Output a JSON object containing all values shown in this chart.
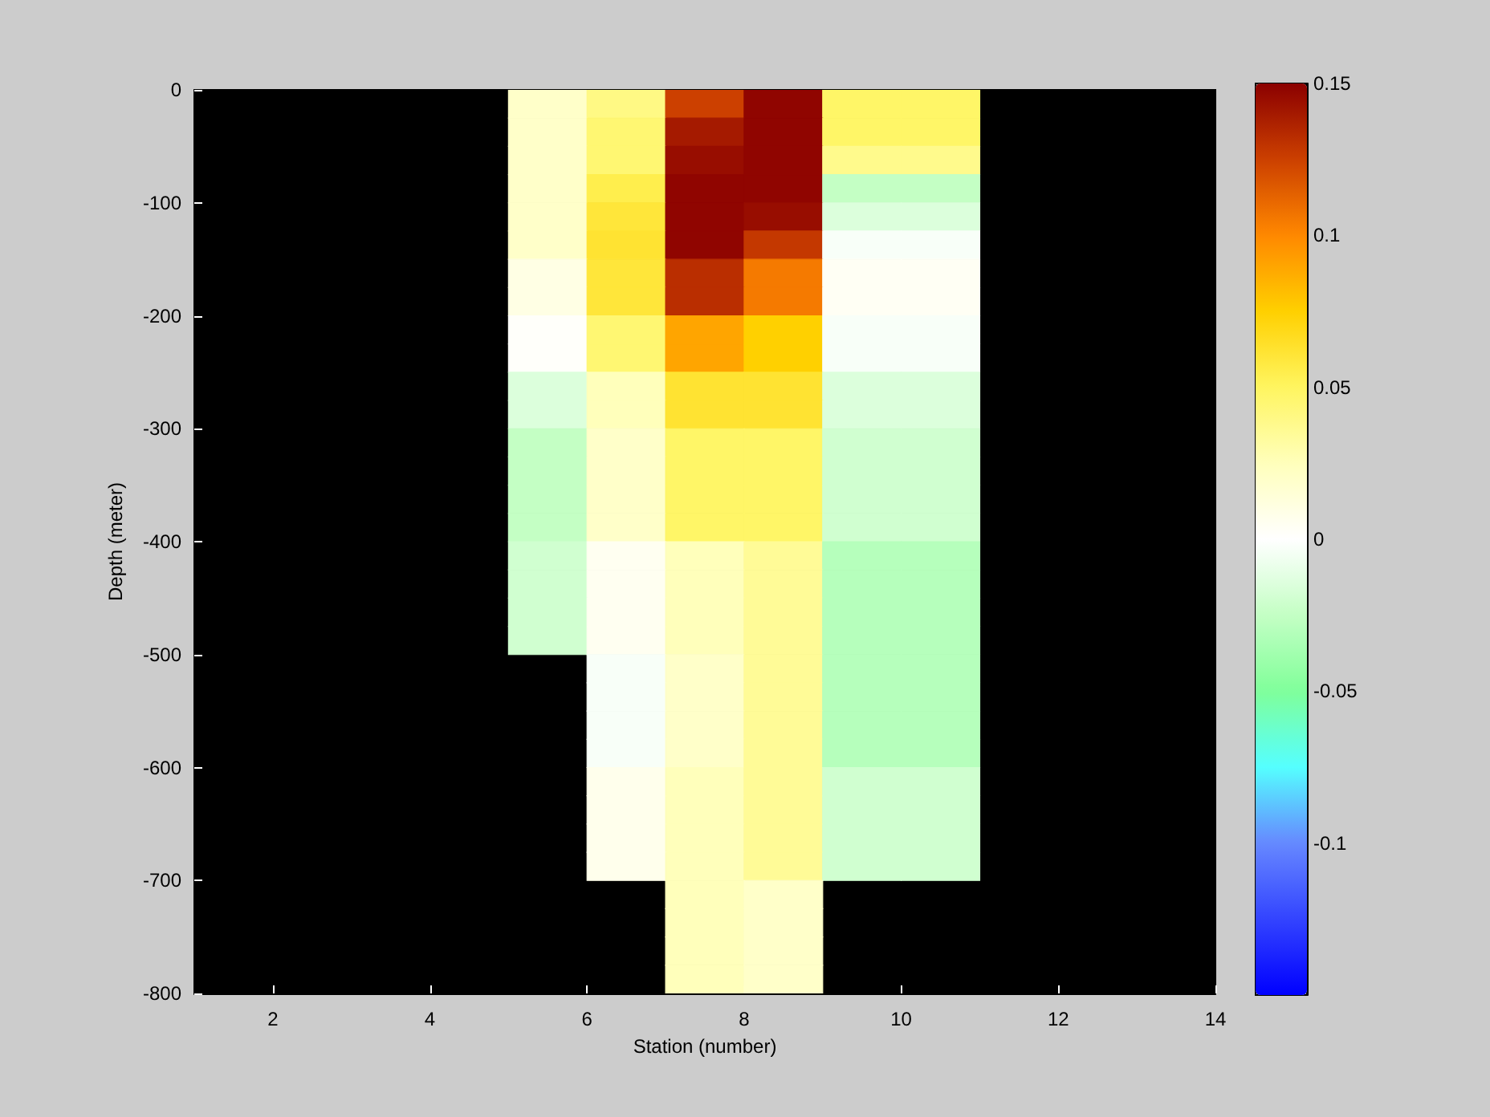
{
  "chart_data": {
    "type": "heatmap",
    "xlabel": "Station (number)",
    "ylabel": "Depth (meter)",
    "xlim": [
      1,
      14
    ],
    "xticks": [
      2,
      4,
      6,
      8,
      10,
      12,
      14
    ],
    "ylim": [
      -800,
      0
    ],
    "yticks": [
      -800,
      -700,
      -600,
      -500,
      -400,
      -300,
      -200,
      -100,
      0
    ],
    "clim": [
      -0.15,
      0.15
    ],
    "cticks": [
      -0.1,
      -0.05,
      0,
      0.05,
      0.1,
      0.15
    ],
    "cells": [
      [
        null,
        null,
        null,
        null,
        0.02,
        0.04,
        0.125,
        0.148,
        0.048,
        0.048,
        null,
        null,
        null
      ],
      [
        null,
        null,
        null,
        null,
        0.02,
        0.045,
        0.14,
        0.148,
        0.048,
        0.048,
        null,
        null,
        null
      ],
      [
        null,
        null,
        null,
        null,
        0.02,
        0.045,
        0.145,
        0.148,
        0.038,
        0.038,
        null,
        null,
        null
      ],
      [
        null,
        null,
        null,
        null,
        0.02,
        0.055,
        0.148,
        0.148,
        -0.025,
        -0.025,
        null,
        null,
        null
      ],
      [
        null,
        null,
        null,
        null,
        0.02,
        0.06,
        0.148,
        0.145,
        -0.015,
        -0.015,
        null,
        null,
        null
      ],
      [
        null,
        null,
        null,
        null,
        0.02,
        0.062,
        0.148,
        0.128,
        -0.003,
        -0.003,
        null,
        null,
        null
      ],
      [
        null,
        null,
        null,
        null,
        0.01,
        0.06,
        0.132,
        0.105,
        0.004,
        0.004,
        null,
        null,
        null
      ],
      [
        null,
        null,
        null,
        null,
        0.01,
        0.06,
        0.132,
        0.105,
        0.004,
        0.004,
        null,
        null,
        null
      ],
      [
        null,
        null,
        null,
        null,
        0.002,
        0.045,
        0.09,
        0.075,
        -0.003,
        -0.003,
        null,
        null,
        null
      ],
      [
        null,
        null,
        null,
        null,
        0.002,
        0.045,
        0.09,
        0.075,
        -0.003,
        -0.003,
        null,
        null,
        null
      ],
      [
        null,
        null,
        null,
        null,
        -0.015,
        0.025,
        0.062,
        0.062,
        -0.015,
        -0.015,
        null,
        null,
        null
      ],
      [
        null,
        null,
        null,
        null,
        -0.015,
        0.025,
        0.062,
        0.062,
        -0.015,
        -0.015,
        null,
        null,
        null
      ],
      [
        null,
        null,
        null,
        null,
        -0.025,
        0.02,
        0.048,
        0.048,
        -0.02,
        -0.02,
        null,
        null,
        null
      ],
      [
        null,
        null,
        null,
        null,
        -0.025,
        0.02,
        0.048,
        0.048,
        -0.02,
        -0.02,
        null,
        null,
        null
      ],
      [
        null,
        null,
        null,
        null,
        -0.025,
        0.02,
        0.048,
        0.048,
        -0.02,
        -0.02,
        null,
        null,
        null
      ],
      [
        null,
        null,
        null,
        null,
        -0.025,
        0.02,
        0.048,
        0.048,
        -0.02,
        -0.02,
        null,
        null,
        null
      ],
      [
        null,
        null,
        null,
        null,
        -0.02,
        0.005,
        0.025,
        0.035,
        -0.03,
        -0.03,
        null,
        null,
        null
      ],
      [
        null,
        null,
        null,
        null,
        -0.02,
        0.005,
        0.025,
        0.035,
        -0.03,
        -0.03,
        null,
        null,
        null
      ],
      [
        null,
        null,
        null,
        null,
        -0.02,
        0.005,
        0.025,
        0.035,
        -0.03,
        -0.03,
        null,
        null,
        null
      ],
      [
        null,
        null,
        null,
        null,
        -0.02,
        0.005,
        0.025,
        0.035,
        -0.03,
        -0.03,
        null,
        null,
        null
      ],
      [
        null,
        null,
        null,
        null,
        null,
        -0.003,
        0.02,
        0.035,
        -0.03,
        -0.03,
        null,
        null,
        null
      ],
      [
        null,
        null,
        null,
        null,
        null,
        -0.003,
        0.02,
        0.035,
        -0.03,
        -0.03,
        null,
        null,
        null
      ],
      [
        null,
        null,
        null,
        null,
        null,
        -0.003,
        0.02,
        0.035,
        -0.03,
        -0.03,
        null,
        null,
        null
      ],
      [
        null,
        null,
        null,
        null,
        null,
        -0.003,
        0.02,
        0.035,
        -0.03,
        -0.03,
        null,
        null,
        null
      ],
      [
        null,
        null,
        null,
        null,
        null,
        0.007,
        0.025,
        0.035,
        -0.02,
        -0.02,
        null,
        null,
        null
      ],
      [
        null,
        null,
        null,
        null,
        null,
        0.007,
        0.025,
        0.035,
        -0.02,
        -0.02,
        null,
        null,
        null
      ],
      [
        null,
        null,
        null,
        null,
        null,
        0.007,
        0.025,
        0.035,
        -0.02,
        -0.02,
        null,
        null,
        null
      ],
      [
        null,
        null,
        null,
        null,
        null,
        0.007,
        0.025,
        0.035,
        -0.02,
        -0.02,
        null,
        null,
        null
      ],
      [
        null,
        null,
        null,
        null,
        null,
        null,
        0.025,
        0.02,
        null,
        null,
        null,
        null,
        null
      ],
      [
        null,
        null,
        null,
        null,
        null,
        null,
        0.025,
        0.02,
        null,
        null,
        null,
        null,
        null
      ],
      [
        null,
        null,
        null,
        null,
        null,
        null,
        0.025,
        0.02,
        null,
        null,
        null,
        null,
        null
      ],
      [
        null,
        null,
        null,
        null,
        null,
        null,
        0.025,
        0.02,
        null,
        null,
        null,
        null,
        null
      ]
    ]
  }
}
